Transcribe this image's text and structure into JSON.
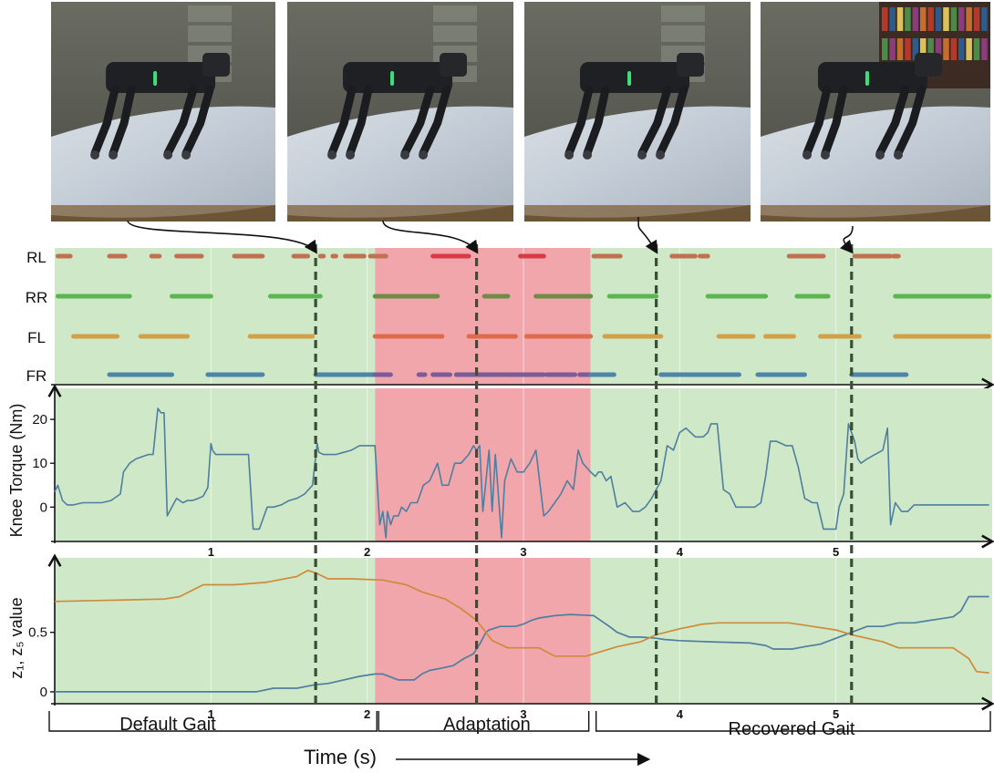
{
  "photos": [
    {
      "alt": "Robot dog on plastic-covered mat, default gait"
    },
    {
      "alt": "Robot dog stepping on slipping mat"
    },
    {
      "alt": "Robot dog adapting on mat"
    },
    {
      "alt": "Robot dog walking with recovered gait"
    }
  ],
  "colors": {
    "default_phase": "#cfe8c7",
    "adaptation_phase": "#f0a6ab",
    "rl": "#c0714f",
    "rl_adapt": "#d83b45",
    "rr": "#5db552",
    "rr_adapt": "#6e8c45",
    "fl": "#d3a048",
    "fl_adapt": "#e06a4c",
    "fr": "#4e84a6",
    "fr_adapt": "#7d5b98",
    "torque_line": "#4f7fa0",
    "z1_line": "#4f7fa0",
    "z5_line": "#cf8a3a",
    "event_line": "#3a4d37"
  },
  "phases": {
    "default_label": "Default Gait",
    "adaptation_label": "Adaptation",
    "recovered_label": "Recovered Gait",
    "default_range": [
      0,
      2.05
    ],
    "adaptation_range": [
      2.05,
      3.43
    ],
    "recovered_range": [
      3.43,
      6.0
    ]
  },
  "time_axis": {
    "label": "Time (s)",
    "ticks": [
      "1",
      "2",
      "3",
      "4",
      "5"
    ],
    "tick_values": [
      1,
      2,
      3,
      4,
      5
    ],
    "range": [
      0,
      6.0
    ]
  },
  "events": [
    1.67,
    2.7,
    3.85,
    5.1
  ],
  "chart_data": [
    {
      "type": "gantt",
      "legs": [
        "RL",
        "RR",
        "FL",
        "FR"
      ],
      "xlim": [
        0,
        6.0
      ],
      "contacts": {
        "RL": [
          [
            0.02,
            0.1
          ],
          [
            0.35,
            0.45
          ],
          [
            0.62,
            0.67
          ],
          [
            0.78,
            0.94
          ],
          [
            1.15,
            1.33
          ],
          [
            1.53,
            1.62
          ],
          [
            1.7,
            1.72
          ],
          [
            1.78,
            1.8
          ],
          [
            1.86,
            1.98
          ],
          [
            2.02,
            2.12
          ],
          [
            2.42,
            2.65
          ],
          [
            2.98,
            3.13
          ],
          [
            3.45,
            3.62
          ],
          [
            3.95,
            4.1
          ],
          [
            4.13,
            4.18
          ],
          [
            4.7,
            4.92
          ],
          [
            5.12,
            5.35
          ],
          [
            5.37,
            5.4
          ]
        ],
        "RR": [
          [
            0.02,
            0.48
          ],
          [
            0.75,
            1.0
          ],
          [
            1.38,
            1.7
          ],
          [
            2.05,
            2.45
          ],
          [
            2.75,
            2.9
          ],
          [
            3.08,
            3.43
          ],
          [
            3.55,
            3.85
          ],
          [
            4.18,
            4.55
          ],
          [
            4.75,
            4.95
          ],
          [
            5.38,
            5.98
          ]
        ],
        "FL": [
          [
            0.12,
            0.4
          ],
          [
            0.55,
            0.85
          ],
          [
            1.25,
            1.65
          ],
          [
            2.05,
            2.48
          ],
          [
            2.65,
            2.95
          ],
          [
            3.02,
            3.43
          ],
          [
            3.52,
            3.88
          ],
          [
            4.25,
            4.47
          ],
          [
            4.55,
            4.73
          ],
          [
            4.9,
            5.15
          ],
          [
            5.38,
            5.98
          ]
        ],
        "FR": [
          [
            0.35,
            0.75
          ],
          [
            0.98,
            1.33
          ],
          [
            1.67,
            2.05
          ],
          [
            2.05,
            2.15
          ],
          [
            2.33,
            2.37
          ],
          [
            2.42,
            2.53
          ],
          [
            2.57,
            2.87
          ],
          [
            2.88,
            3.13
          ],
          [
            3.15,
            3.33
          ],
          [
            3.36,
            3.43
          ],
          [
            3.43,
            3.58
          ],
          [
            3.88,
            4.38
          ],
          [
            4.5,
            4.8
          ],
          [
            5.1,
            5.45
          ]
        ]
      }
    },
    {
      "type": "line",
      "ylabel": "Knee Torque (Nm)",
      "yticks": [
        0,
        10,
        20
      ],
      "ylim": [
        -7,
        25
      ],
      "x": [
        0.0,
        0.02,
        0.05,
        0.08,
        0.12,
        0.18,
        0.24,
        0.3,
        0.36,
        0.42,
        0.44,
        0.48,
        0.52,
        0.56,
        0.6,
        0.63,
        0.66,
        0.68,
        0.7,
        0.72,
        0.75,
        0.78,
        0.82,
        0.85,
        0.88,
        0.92,
        0.95,
        0.98,
        1.0,
        1.01,
        1.03,
        1.05,
        1.08,
        1.12,
        1.16,
        1.2,
        1.24,
        1.27,
        1.29,
        1.31,
        1.36,
        1.4,
        1.45,
        1.5,
        1.55,
        1.6,
        1.65,
        1.68,
        1.69,
        1.72,
        1.75,
        1.8,
        1.85,
        1.9,
        1.95,
        2.0,
        2.02,
        2.05,
        2.08,
        2.1,
        2.12,
        2.13,
        2.15,
        2.17,
        2.2,
        2.22,
        2.25,
        2.28,
        2.32,
        2.36,
        2.4,
        2.45,
        2.48,
        2.52,
        2.56,
        2.6,
        2.65,
        2.68,
        2.7,
        2.72,
        2.74,
        2.76,
        2.78,
        2.8,
        2.82,
        2.86,
        2.88,
        2.92,
        2.96,
        3.0,
        3.04,
        3.08,
        3.1,
        3.13,
        3.16,
        3.2,
        3.24,
        3.28,
        3.32,
        3.35,
        3.38,
        3.43,
        3.46,
        3.48,
        3.5,
        3.53,
        3.56,
        3.6,
        3.65,
        3.7,
        3.74,
        3.78,
        3.8,
        3.82,
        3.85,
        3.88,
        3.92,
        3.96,
        4.0,
        4.04,
        4.1,
        4.15,
        4.18,
        4.2,
        4.24,
        4.28,
        4.32,
        4.36,
        4.42,
        4.48,
        4.52,
        4.55,
        4.58,
        4.62,
        4.68,
        4.72,
        4.76,
        4.8,
        4.85,
        4.88,
        4.92,
        4.96,
        5.0,
        5.02,
        5.05,
        5.08,
        5.1,
        5.12,
        5.14,
        5.16,
        5.2,
        5.25,
        5.3,
        5.33,
        5.35,
        5.38,
        5.4,
        5.42,
        5.46,
        5.5,
        5.56,
        5.62,
        5.7,
        5.8,
        5.9,
        5.98
      ],
      "y": [
        3.5,
        5,
        1.5,
        0.5,
        0.5,
        1,
        1,
        1,
        1.5,
        3,
        8,
        10,
        11,
        11.5,
        12,
        12,
        22.5,
        21.5,
        21.5,
        -2,
        0,
        2,
        1,
        1.5,
        1.5,
        2,
        2.5,
        4.5,
        14.5,
        13,
        12,
        12,
        12,
        12,
        12,
        12,
        12,
        -5,
        -5,
        -5,
        0,
        0,
        0.5,
        1.5,
        2,
        3,
        5,
        14.5,
        12.5,
        12,
        12,
        12,
        12.5,
        13,
        14,
        14,
        14,
        14,
        -4,
        -1,
        -7,
        -1,
        -4,
        -2,
        -2,
        0,
        -1,
        1,
        1,
        5,
        6,
        10,
        5,
        5,
        10,
        10,
        12,
        14,
        13,
        14,
        -1,
        6,
        13,
        -1,
        12,
        -7,
        6,
        11,
        8,
        8,
        10,
        13,
        7,
        -2,
        -1,
        1,
        3,
        6,
        4,
        13,
        10,
        8,
        7,
        8,
        8,
        6,
        7,
        0,
        1,
        -1,
        -1,
        0,
        1,
        2,
        4,
        6,
        14,
        13,
        17,
        18,
        16,
        16,
        17,
        19,
        19,
        4,
        3,
        0,
        0,
        0,
        1,
        7,
        15,
        15,
        14,
        14,
        9,
        2,
        1,
        1,
        -5,
        -5,
        -5,
        0,
        3,
        19,
        17,
        15,
        11,
        10,
        11,
        12,
        13,
        18,
        -4,
        1,
        0,
        -1,
        -1,
        0.5,
        0.5,
        0.5,
        0.5,
        0.5,
        0.5,
        0.5
      ]
    },
    {
      "type": "line",
      "ylabel": "z₁, z₅ value",
      "yticks": [
        0,
        0.5
      ],
      "ylim": [
        -0.1,
        1.08
      ],
      "series": [
        {
          "name": "z₁",
          "x": [
            0.0,
            0.8,
            1.29,
            1.4,
            1.55,
            1.67,
            1.75,
            1.85,
            1.95,
            2.05,
            2.1,
            2.2,
            2.3,
            2.35,
            2.4,
            2.48,
            2.55,
            2.62,
            2.68,
            2.72,
            2.76,
            2.78,
            2.85,
            2.95,
            3.0,
            3.05,
            3.1,
            3.2,
            3.3,
            3.45,
            3.55,
            3.6,
            3.68,
            3.75,
            3.85,
            3.9,
            4.0,
            4.2,
            4.45,
            4.55,
            4.6,
            4.72,
            4.8,
            4.9,
            5.0,
            5.1,
            5.2,
            5.3,
            5.4,
            5.5,
            5.65,
            5.75,
            5.8,
            5.85,
            5.98
          ],
          "y": [
            0.0,
            0.0,
            0.0,
            0.03,
            0.03,
            0.06,
            0.07,
            0.1,
            0.13,
            0.15,
            0.15,
            0.1,
            0.1,
            0.15,
            0.18,
            0.2,
            0.22,
            0.28,
            0.32,
            0.4,
            0.5,
            0.52,
            0.55,
            0.55,
            0.57,
            0.6,
            0.62,
            0.64,
            0.65,
            0.64,
            0.55,
            0.5,
            0.46,
            0.46,
            0.45,
            0.44,
            0.43,
            0.42,
            0.41,
            0.39,
            0.36,
            0.36,
            0.38,
            0.4,
            0.45,
            0.5,
            0.55,
            0.55,
            0.58,
            0.58,
            0.61,
            0.63,
            0.68,
            0.8,
            0.8
          ]
        },
        {
          "name": "z₅",
          "x": [
            0.0,
            0.7,
            0.8,
            0.95,
            1.15,
            1.35,
            1.55,
            1.62,
            1.67,
            1.75,
            1.9,
            2.1,
            2.25,
            2.35,
            2.5,
            2.6,
            2.7,
            2.76,
            2.8,
            2.9,
            3.1,
            3.2,
            3.4,
            3.6,
            3.75,
            3.85,
            4.0,
            4.15,
            4.25,
            4.5,
            4.7,
            4.85,
            5.0,
            5.1,
            5.2,
            5.3,
            5.4,
            5.55,
            5.75,
            5.85,
            5.9,
            5.98
          ],
          "y": [
            0.76,
            0.78,
            0.8,
            0.9,
            0.9,
            0.92,
            0.97,
            1.02,
            1.0,
            0.95,
            0.95,
            0.94,
            0.9,
            0.84,
            0.78,
            0.7,
            0.6,
            0.5,
            0.43,
            0.37,
            0.37,
            0.3,
            0.3,
            0.38,
            0.42,
            0.48,
            0.53,
            0.57,
            0.58,
            0.58,
            0.58,
            0.55,
            0.52,
            0.48,
            0.45,
            0.42,
            0.37,
            0.37,
            0.37,
            0.28,
            0.17,
            0.16
          ]
        }
      ]
    }
  ]
}
